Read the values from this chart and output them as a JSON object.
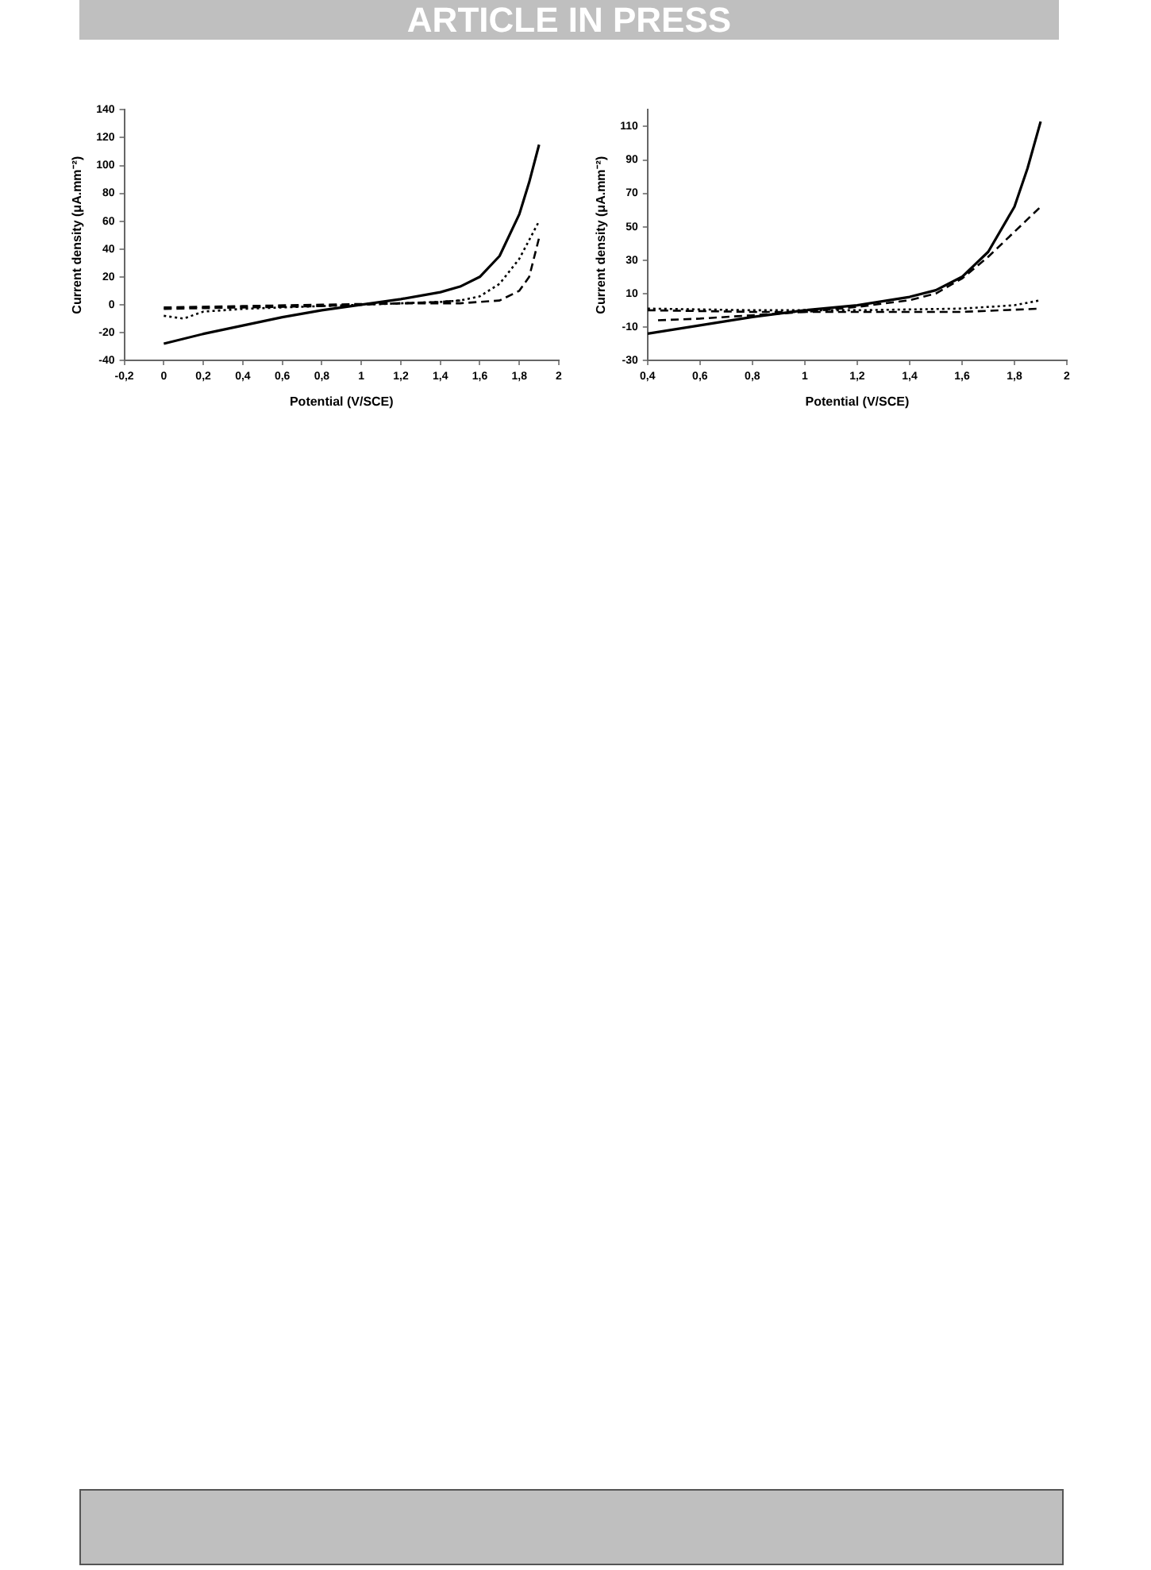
{
  "chart_data": [
    {
      "type": "line",
      "annotations": [
        "ARTICLE IN PRESS"
      ],
      "xlabel": "Potential (V/SCE)",
      "ylabel": "Current density (μA.mm⁻²)",
      "xlim": [
        -0.2,
        2
      ],
      "ylim": [
        -40,
        140
      ],
      "xticks": [
        {
          "value": -0.2,
          "label": "-0,2"
        },
        0,
        {
          "value": 0.2,
          "label": "0,2"
        },
        {
          "value": 0.4,
          "label": "0,4"
        },
        {
          "value": 0.6,
          "label": "0,6"
        },
        {
          "value": 0.8,
          "label": "0,8"
        },
        1,
        {
          "value": 1.2,
          "label": "1,2"
        },
        {
          "value": 1.4,
          "label": "1,4"
        },
        {
          "value": 1.6,
          "label": "1,6"
        },
        {
          "value": 1.8,
          "label": "1,8"
        },
        2
      ],
      "yticks": [
        -40,
        -20,
        0,
        20,
        40,
        60,
        80,
        100,
        120,
        140
      ],
      "grid": false,
      "legend": false,
      "marker": "none",
      "series": [
        {
          "color": "#000000",
          "line_style": "solid",
          "x": [
            0,
            0.2,
            0.4,
            0.6,
            0.8,
            1.0,
            1.2,
            1.4,
            1.5,
            1.6,
            1.7,
            1.8,
            1.85,
            1.9
          ],
          "values": [
            -28,
            -21,
            -15,
            -9,
            -4,
            0,
            4,
            9,
            13,
            20,
            35,
            65,
            88,
            115
          ]
        },
        {
          "color": "#000000",
          "line_style": "dotted",
          "x": [
            0,
            0.1,
            0.2,
            0.4,
            0.8,
            1.2,
            1.4,
            1.5,
            1.6,
            1.7,
            1.8,
            1.9
          ],
          "values": [
            -8,
            -10,
            -5,
            -3,
            -1,
            1,
            2,
            3,
            6,
            15,
            33,
            60
          ]
        },
        {
          "color": "#000000",
          "line_style": "dashed",
          "x": [
            0,
            0.4,
            0.8,
            1.2,
            1.5,
            1.7,
            1.8,
            1.85,
            1.9
          ],
          "values": [
            -3,
            -2,
            -1,
            1,
            1,
            3,
            10,
            20,
            48
          ]
        },
        {
          "color": "#000000",
          "line_style": "dashed",
          "x": [
            0,
            0.4,
            0.8,
            1.2,
            1.4,
            1.5
          ],
          "values": [
            -2,
            -1,
            0,
            1,
            2,
            3
          ]
        }
      ]
    },
    {
      "type": "line",
      "xlabel": "Potential (V/SCE)",
      "ylabel": "Current density (μA.mm⁻²)",
      "xlim": [
        0.4,
        2
      ],
      "ylim": [
        -30,
        120
      ],
      "xticks": [
        {
          "value": 0.4,
          "label": "0,4"
        },
        {
          "value": 0.6,
          "label": "0,6"
        },
        {
          "value": 0.8,
          "label": "0,8"
        },
        1,
        {
          "value": 1.2,
          "label": "1,2"
        },
        {
          "value": 1.4,
          "label": "1,4"
        },
        {
          "value": 1.6,
          "label": "1,6"
        },
        {
          "value": 1.8,
          "label": "1,8"
        },
        2
      ],
      "yticks": [
        -30,
        -10,
        10,
        30,
        50,
        70,
        90,
        110
      ],
      "grid": false,
      "legend": false,
      "marker": "none",
      "series": [
        {
          "color": "#000000",
          "line_style": "solid",
          "x": [
            0.4,
            0.6,
            0.8,
            1.0,
            1.2,
            1.4,
            1.5,
            1.6,
            1.7,
            1.8,
            1.85,
            1.9
          ],
          "values": [
            -14,
            -9,
            -4,
            0,
            3,
            8,
            12,
            20,
            35,
            62,
            85,
            113
          ]
        },
        {
          "color": "#000000",
          "line_style": "dashed",
          "x": [
            0.44,
            0.6,
            0.8,
            1.0,
            1.2,
            1.4,
            1.5,
            1.6,
            1.7,
            1.8,
            1.9
          ],
          "values": [
            -6,
            -5,
            -3,
            -1,
            2,
            6,
            10,
            19,
            32,
            47,
            62
          ]
        },
        {
          "color": "#000000",
          "line_style": "dotted",
          "x": [
            0.4,
            0.8,
            1.2,
            1.6,
            1.8,
            1.9
          ],
          "values": [
            1,
            0,
            0,
            1,
            3,
            6
          ]
        },
        {
          "color": "#000000",
          "line_style": "dashed",
          "x": [
            0.4,
            0.8,
            1.2,
            1.6,
            1.9
          ],
          "values": [
            0,
            -1,
            -1,
            -1,
            1
          ]
        }
      ]
    }
  ]
}
